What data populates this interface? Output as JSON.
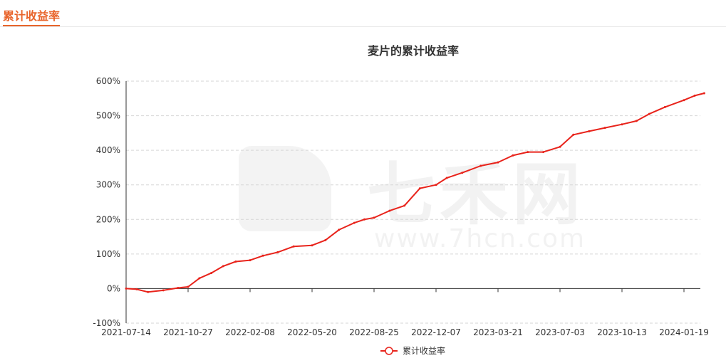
{
  "header": {
    "tab_title": "累计收益率"
  },
  "watermark": {
    "cn": "七禾网",
    "url": "www.7hcn.com"
  },
  "colors": {
    "accent": "#e8642b",
    "series": "#e8231b",
    "grid": "#d6d6d6",
    "axis": "#333333"
  },
  "chart_data": {
    "type": "line",
    "title": "麦片的累计收益率",
    "xlabel": "",
    "ylabel": "",
    "ylim": [
      -100,
      600
    ],
    "y_ticks": [
      -100,
      0,
      100,
      200,
      300,
      400,
      500,
      600
    ],
    "y_tick_labels": [
      "-100%",
      "0%",
      "100%",
      "200%",
      "300%",
      "400%",
      "500%",
      "600%"
    ],
    "x_tick_labels": [
      "2021-07-14",
      "2021-10-27",
      "2022-02-08",
      "2022-05-20",
      "2022-08-25",
      "2022-12-07",
      "2023-03-21",
      "2023-07-03",
      "2023-10-13",
      "2024-01-19"
    ],
    "grid": true,
    "legend_position": "bottom-center",
    "series": [
      {
        "name": "累计收益率",
        "x": [
          "2021-07-14",
          "2021-08-01",
          "2021-08-20",
          "2021-09-15",
          "2021-10-10",
          "2021-10-27",
          "2021-11-15",
          "2021-12-05",
          "2021-12-25",
          "2022-01-15",
          "2022-02-08",
          "2022-03-01",
          "2022-03-25",
          "2022-04-20",
          "2022-05-20",
          "2022-06-10",
          "2022-07-01",
          "2022-07-25",
          "2022-08-10",
          "2022-08-25",
          "2022-09-20",
          "2022-10-15",
          "2022-11-10",
          "2022-12-07",
          "2022-12-25",
          "2023-01-20",
          "2023-02-20",
          "2023-03-21",
          "2023-04-15",
          "2023-05-10",
          "2023-06-05",
          "2023-07-03",
          "2023-07-25",
          "2023-08-20",
          "2023-09-15",
          "2023-10-13",
          "2023-11-05",
          "2023-11-25",
          "2023-12-20",
          "2024-01-19",
          "2024-02-05",
          "2024-02-20"
        ],
        "values": [
          0,
          -2,
          -10,
          -5,
          2,
          5,
          30,
          45,
          65,
          78,
          82,
          95,
          105,
          122,
          125,
          140,
          170,
          190,
          200,
          205,
          225,
          240,
          290,
          300,
          320,
          335,
          355,
          365,
          385,
          395,
          395,
          410,
          445,
          455,
          465,
          475,
          485,
          505,
          525,
          545,
          558,
          565
        ]
      }
    ]
  }
}
